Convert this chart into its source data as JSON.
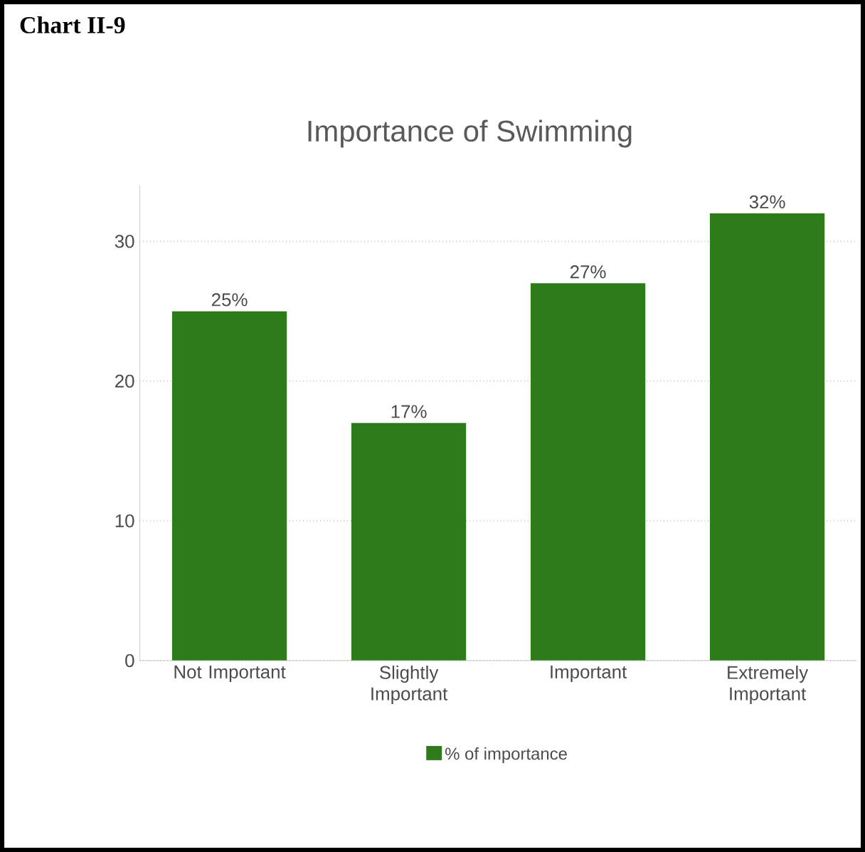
{
  "chart_data": {
    "type": "bar",
    "title": "Chart II-9",
    "subtitle": "Importance of Swimming",
    "categories": [
      "Not Important",
      "Slightly Important",
      "Important",
      "Extremely Important"
    ],
    "series": [
      {
        "name": "% of importance",
        "color": "#2e7b1c",
        "values": [
          25,
          17,
          27,
          32
        ],
        "value_labels": [
          "25%",
          "17%",
          "27%",
          "32%"
        ]
      }
    ],
    "ylim": [
      0,
      34
    ],
    "yticks": [
      0,
      10,
      20,
      30
    ],
    "grid": "y",
    "legend": "bottom"
  }
}
